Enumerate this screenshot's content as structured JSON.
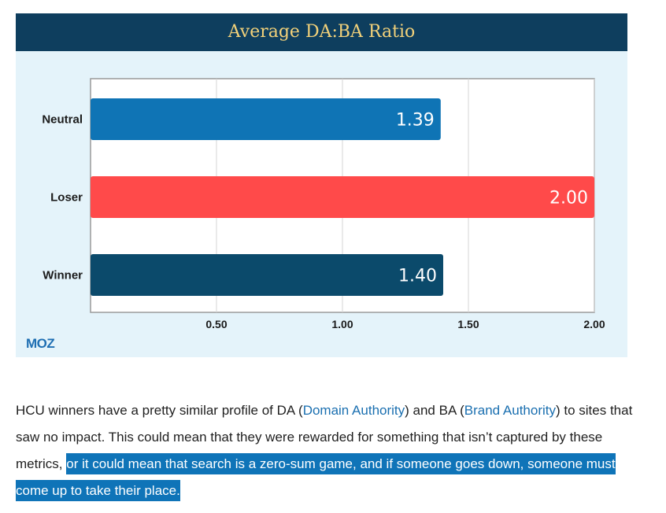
{
  "chart_data": {
    "type": "bar",
    "orientation": "horizontal",
    "title": "Average DA:BA Ratio",
    "categories": [
      "Neutral",
      "Loser",
      "Winner"
    ],
    "values": [
      1.39,
      2.0,
      1.4
    ],
    "value_labels": [
      "1.39",
      "2.00",
      "1.40"
    ],
    "bar_colors": [
      "#0f74b5",
      "#ff4a4a",
      "#0b4a6b"
    ],
    "xlim": [
      0,
      2.0
    ],
    "xticks": [
      0.5,
      1.0,
      1.5,
      2.0
    ],
    "xtick_labels": [
      "0.50",
      "1.00",
      "1.50",
      "2.00"
    ],
    "grid": true,
    "xlabel": "",
    "ylabel": ""
  },
  "logo": {
    "text": "MOZ"
  },
  "paragraph": {
    "part1": "HCU winners have a pretty similar profile of DA (",
    "link1": "Domain Authority",
    "part2": ") and BA (",
    "link2": "Brand Authority",
    "part3": ") to sites that saw no impact. This could mean that they were rewarded for something that isn’t captured by these metrics, ",
    "highlight": "or it could mean that search is a zero-sum game, and if someone goes down, someone must come up to take their place."
  },
  "colors": {
    "header_bg": "#0e3e5e",
    "title_text": "#f3d27a",
    "card_bg": "#e4f3fa",
    "highlight_bg": "#0f74b8"
  }
}
